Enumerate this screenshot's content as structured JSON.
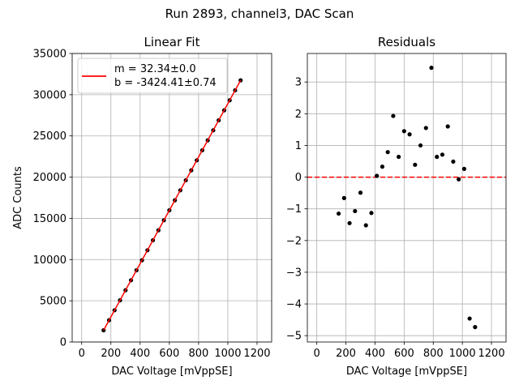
{
  "suptitle": "Run 2893, channel3, DAC Scan",
  "chart_data": [
    {
      "type": "scatter",
      "title": "Linear Fit",
      "xlabel": "DAC Voltage [mVppSE]",
      "ylabel": "ADC Counts",
      "xlim": [
        -65,
        1300
      ],
      "ylim": [
        0,
        35000
      ],
      "xticks": [
        0,
        200,
        400,
        600,
        800,
        1000,
        1200
      ],
      "xtick_labels": [
        "0",
        "200",
        "400",
        "600",
        "800",
        "1000",
        "1200"
      ],
      "yticks": [
        0,
        5000,
        10000,
        15000,
        20000,
        25000,
        30000,
        35000
      ],
      "ytick_labels": [
        "0",
        "5000",
        "10000",
        "15000",
        "20000",
        "25000",
        "30000",
        "35000"
      ],
      "grid": true,
      "legend_position": "upper-left",
      "series": [
        {
          "name": "data",
          "kind": "points",
          "color": "#000000",
          "x": [
            150,
            187.5,
            225,
            262.5,
            300,
            337.5,
            375,
            412.5,
            450,
            487.5,
            525,
            562.5,
            600,
            637.5,
            675,
            712.5,
            750,
            787.5,
            825,
            862.5,
            900,
            937.5,
            975,
            1012.5,
            1050,
            1087.5
          ],
          "y": [
            1427,
            2640,
            3852,
            5065,
            6278,
            7491,
            8703,
            9916,
            11129,
            12342,
            13554,
            14767,
            15980,
            17193,
            18405,
            19618,
            20831,
            22043,
            23256,
            24469,
            25682,
            26894,
            28107,
            29320,
            30533,
            31745
          ]
        },
        {
          "name": "fit",
          "kind": "line",
          "color": "#ff0000",
          "label_line1": "m = 32.34±0.0",
          "label_line2": "b = -3424.41±0.74",
          "x": [
            150,
            1087.5
          ],
          "y": [
            1426.6,
            31745.4
          ]
        }
      ]
    },
    {
      "type": "scatter",
      "title": "Residuals",
      "xlabel": "DAC Voltage [mVppSE]",
      "ylabel": "",
      "xlim": [
        -65,
        1300
      ],
      "ylim": [
        -5.2,
        3.9
      ],
      "xticks": [
        0,
        200,
        400,
        600,
        800,
        1000,
        1200
      ],
      "xtick_labels": [
        "0",
        "200",
        "400",
        "600",
        "800",
        "1000",
        "1200"
      ],
      "yticks": [
        -5,
        -4,
        -3,
        -2,
        -1,
        0,
        1,
        2,
        3
      ],
      "ytick_labels": [
        "−5",
        "−4",
        "−3",
        "−2",
        "−1",
        "0",
        "1",
        "2",
        "3"
      ],
      "grid": true,
      "reference_line": {
        "y": 0,
        "color": "#ff0000",
        "style": "dashed"
      },
      "series": [
        {
          "name": "residuals",
          "kind": "points",
          "color": "#000000",
          "x": [
            150,
            187.5,
            225,
            262.5,
            300,
            337.5,
            375,
            412.5,
            450,
            487.5,
            525,
            562.5,
            600,
            637.5,
            675,
            712.5,
            750,
            787.5,
            825,
            862.5,
            900,
            937.5,
            975,
            1012.5,
            1050,
            1087.5
          ],
          "y": [
            -1.15,
            -0.66,
            -1.45,
            -1.07,
            -0.49,
            -1.52,
            -1.13,
            0.04,
            0.33,
            0.79,
            1.93,
            0.64,
            1.45,
            1.35,
            0.39,
            1.0,
            1.55,
            3.45,
            0.64,
            0.71,
            1.6,
            0.49,
            -0.07,
            0.26,
            -4.46,
            -4.73
          ]
        }
      ]
    }
  ]
}
